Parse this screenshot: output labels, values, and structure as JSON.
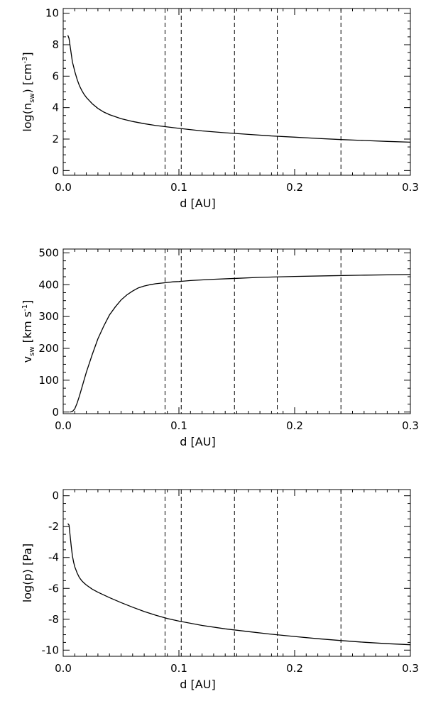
{
  "chart_data": [
    {
      "type": "line",
      "xlabel_parts": {
        "base": "d ",
        "unit": "[AU]"
      },
      "ylabel_parts": {
        "pre": "log(n",
        "sub": "sw",
        "mid": ") [cm",
        "sup": "-3",
        "post": "]"
      },
      "xlim": [
        0.0,
        0.3
      ],
      "ylim": [
        -0.3,
        10.3
      ],
      "xticks": [
        0.0,
        0.1,
        0.2,
        0.3
      ],
      "xtick_labels": [
        "0.0",
        "0.1",
        "0.2",
        "0.3"
      ],
      "yticks": [
        0,
        2,
        4,
        6,
        8,
        10
      ],
      "ytick_labels": [
        "0",
        "2",
        "4",
        "6",
        "8",
        "10"
      ],
      "vlines": [
        0.088,
        0.102,
        0.148,
        0.185,
        0.24
      ],
      "series": [
        {
          "x": [
            0.004,
            0.005,
            0.006,
            0.007,
            0.008,
            0.009,
            0.01,
            0.012,
            0.014,
            0.016,
            0.018,
            0.02,
            0.025,
            0.03,
            0.035,
            0.04,
            0.05,
            0.06,
            0.07,
            0.08,
            0.09,
            0.1,
            0.12,
            0.14,
            0.16,
            0.18,
            0.2,
            0.22,
            0.24,
            0.26,
            0.28,
            0.3
          ],
          "y": [
            8.6,
            8.4,
            7.9,
            7.4,
            6.9,
            6.6,
            6.3,
            5.8,
            5.4,
            5.1,
            4.85,
            4.65,
            4.25,
            3.95,
            3.72,
            3.55,
            3.3,
            3.12,
            2.98,
            2.86,
            2.77,
            2.68,
            2.52,
            2.4,
            2.3,
            2.2,
            2.12,
            2.04,
            1.97,
            1.91,
            1.85,
            1.8
          ]
        }
      ]
    },
    {
      "type": "line",
      "xlabel_parts": {
        "base": "d ",
        "unit": "[AU]"
      },
      "ylabel_parts": {
        "pre": "v",
        "sub": "sw",
        "mid": " [km s",
        "sup": "-1",
        "post": "]"
      },
      "xlim": [
        0.0,
        0.3
      ],
      "ylim": [
        -5,
        512
      ],
      "xticks": [
        0.0,
        0.1,
        0.2,
        0.3
      ],
      "xtick_labels": [
        "0.0",
        "0.1",
        "0.2",
        "0.3"
      ],
      "yticks": [
        0,
        100,
        200,
        300,
        400,
        500
      ],
      "ytick_labels": [
        "0",
        "100",
        "200",
        "300",
        "400",
        "500"
      ],
      "vlines": [
        0.088,
        0.102,
        0.148,
        0.185,
        0.24
      ],
      "series": [
        {
          "x": [
            0.006,
            0.008,
            0.01,
            0.012,
            0.014,
            0.016,
            0.018,
            0.02,
            0.025,
            0.03,
            0.035,
            0.04,
            0.045,
            0.05,
            0.055,
            0.06,
            0.065,
            0.07,
            0.075,
            0.08,
            0.085,
            0.09,
            0.095,
            0.1,
            0.11,
            0.12,
            0.13,
            0.15,
            0.17,
            0.2,
            0.23,
            0.26,
            0.3
          ],
          "y": [
            0,
            2,
            10,
            28,
            50,
            75,
            100,
            125,
            180,
            230,
            270,
            305,
            330,
            352,
            368,
            380,
            390,
            396,
            400,
            403,
            405,
            407,
            409,
            410,
            413,
            415,
            417,
            420,
            423,
            426,
            428,
            430,
            432
          ]
        }
      ]
    },
    {
      "type": "line",
      "xlabel_parts": {
        "base": "d ",
        "unit": "[AU]"
      },
      "ylabel_parts": {
        "pre": "log(p) [Pa]",
        "sub": "",
        "mid": "",
        "sup": "",
        "post": ""
      },
      "xlim": [
        0.0,
        0.3
      ],
      "ylim": [
        -10.4,
        0.4
      ],
      "xticks": [
        0.0,
        0.1,
        0.2,
        0.3
      ],
      "xtick_labels": [
        "0.0",
        "0.1",
        "0.2",
        "0.3"
      ],
      "yticks": [
        -10,
        -8,
        -6,
        -4,
        -2,
        0
      ],
      "ytick_labels": [
        "-10",
        "-8",
        "-6",
        "-4",
        "-2",
        "0"
      ],
      "vlines": [
        0.088,
        0.102,
        0.148,
        0.185,
        0.24
      ],
      "series": [
        {
          "x": [
            0.004,
            0.005,
            0.006,
            0.007,
            0.008,
            0.009,
            0.01,
            0.012,
            0.014,
            0.016,
            0.018,
            0.02,
            0.025,
            0.03,
            0.04,
            0.05,
            0.06,
            0.07,
            0.08,
            0.09,
            0.1,
            0.12,
            0.14,
            0.16,
            0.18,
            0.2,
            0.22,
            0.24,
            0.26,
            0.28,
            0.3
          ],
          "y": [
            -1.8,
            -1.9,
            -2.6,
            -3.3,
            -3.9,
            -4.3,
            -4.6,
            -5.0,
            -5.3,
            -5.5,
            -5.65,
            -5.78,
            -6.05,
            -6.25,
            -6.6,
            -6.92,
            -7.22,
            -7.5,
            -7.74,
            -7.95,
            -8.12,
            -8.4,
            -8.62,
            -8.8,
            -8.97,
            -9.12,
            -9.26,
            -9.38,
            -9.49,
            -9.58,
            -9.65
          ]
        }
      ]
    }
  ]
}
